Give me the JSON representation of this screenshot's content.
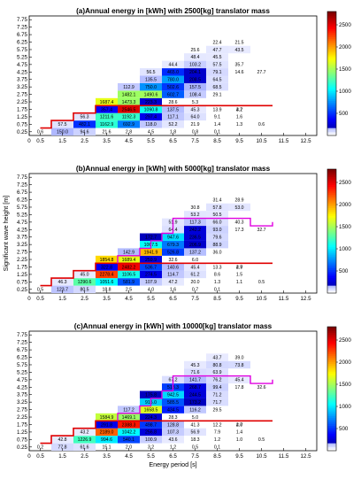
{
  "chart_data": [
    {
      "type": "heatmap",
      "title": "(a)Annual energy in [kWh] with 2500[kg] translator mass",
      "xlim": [
        0,
        13
      ],
      "ylim": [
        0,
        8
      ],
      "x_ticks": [
        "0",
        "0.5",
        "1.5",
        "2.5",
        "3.5",
        "4.5",
        "5.5",
        "6.5",
        "7.5",
        "8.5",
        "9.5",
        "10.5",
        "11.5",
        "12.5"
      ],
      "y_ticks": [
        "0.25",
        "0.75",
        "1.25",
        "1.75",
        "2.25",
        "2.75",
        "3.25",
        "3.75",
        "4.25",
        "4.75",
        "5.25",
        "5.75",
        "6.25",
        "6.75",
        "7.25",
        "7.75"
      ],
      "colorbar_ticks": [
        "500",
        "1000",
        "1500",
        "2000",
        "2500"
      ],
      "clim": [
        0,
        2800
      ],
      "cells": [
        [
          0.5,
          0.25,
          0.6
        ],
        [
          1.5,
          0.25,
          150.0
        ],
        [
          2.5,
          0.25,
          94.6
        ],
        [
          3.5,
          0.25,
          21.6
        ],
        [
          4.5,
          0.25,
          2.8
        ],
        [
          5.5,
          0.25,
          4.5
        ],
        [
          6.5,
          0.25,
          1.8
        ],
        [
          7.5,
          0.25,
          0.8
        ],
        [
          8.5,
          0.25,
          0.1
        ],
        [
          1.5,
          0.75,
          57.5
        ],
        [
          2.5,
          0.75,
          482.1
        ],
        [
          3.5,
          0.75,
          1162.9
        ],
        [
          4.5,
          0.75,
          692.9
        ],
        [
          5.5,
          0.75,
          118.0
        ],
        [
          6.5,
          0.75,
          52.2
        ],
        [
          7.5,
          0.75,
          21.9
        ],
        [
          8.5,
          0.75,
          1.4
        ],
        [
          9.5,
          0.75,
          1.3
        ],
        [
          10.5,
          0.75,
          0.6
        ],
        [
          2.5,
          1.25,
          56.3
        ],
        [
          3.5,
          1.25,
          1211.6
        ],
        [
          4.5,
          1.25,
          1192.3
        ],
        [
          5.5,
          1.25,
          297.4
        ],
        [
          6.5,
          1.25,
          117.1
        ],
        [
          7.5,
          1.25,
          64.0
        ],
        [
          8.5,
          1.25,
          9.1
        ],
        [
          9.5,
          1.25,
          1.6
        ],
        [
          3.5,
          1.75,
          357.4
        ],
        [
          4.5,
          1.75,
          2546.5
        ],
        [
          5.5,
          1.75,
          1090.8
        ],
        [
          6.5,
          1.75,
          137.5
        ],
        [
          7.5,
          1.75,
          45.3
        ],
        [
          8.5,
          1.75,
          13.9
        ],
        [
          9.5,
          1.75,
          3.2
        ],
        [
          3.5,
          2.25,
          1687.4
        ],
        [
          4.5,
          2.25,
          1473.3
        ],
        [
          5.5,
          2.25,
          223.3
        ],
        [
          6.5,
          2.25,
          28.6
        ],
        [
          7.5,
          2.25,
          5.3
        ],
        [
          4.5,
          2.75,
          1482.1
        ],
        [
          5.5,
          2.75,
          1490.6
        ],
        [
          6.5,
          2.75,
          602.7
        ],
        [
          7.5,
          2.75,
          108.4
        ],
        [
          8.5,
          2.75,
          29.1
        ],
        [
          4.5,
          3.25,
          112.9
        ],
        [
          5.5,
          3.25,
          750.0
        ],
        [
          6.5,
          3.25,
          502.6
        ],
        [
          7.5,
          3.25,
          157.5
        ],
        [
          8.5,
          3.25,
          68.5
        ],
        [
          5.5,
          3.75,
          135.5
        ],
        [
          6.5,
          3.75,
          780.0
        ],
        [
          7.5,
          3.75,
          208.5
        ],
        [
          8.5,
          3.75,
          64.5
        ],
        [
          5.5,
          4.25,
          56.5
        ],
        [
          6.5,
          4.25,
          465.0
        ],
        [
          7.5,
          4.25,
          204.1
        ],
        [
          8.5,
          4.25,
          79.1
        ],
        [
          9.5,
          4.25,
          14.6
        ],
        [
          10.5,
          4.25,
          27.7
        ],
        [
          6.5,
          4.75,
          44.4
        ],
        [
          7.5,
          4.75,
          103.2
        ],
        [
          8.5,
          4.75,
          57.5
        ],
        [
          9.5,
          4.75,
          35.7
        ],
        [
          7.5,
          5.25,
          48.4
        ],
        [
          8.5,
          5.25,
          45.5
        ],
        [
          7.5,
          5.75,
          25.6
        ],
        [
          8.5,
          5.75,
          47.7
        ],
        [
          9.5,
          5.75,
          43.5
        ],
        [
          8.5,
          6.25,
          22.4
        ],
        [
          9.5,
          6.25,
          21.5
        ],
        [
          9.5,
          1.75,
          4.7
        ]
      ]
    },
    {
      "type": "heatmap",
      "title": "(b)Annual energy in [kWh] with 5000[kg] translator mass",
      "ylabel": "Significant wave height [m]",
      "xlim": [
        0,
        13
      ],
      "ylim": [
        0,
        8
      ],
      "x_ticks": [
        "0",
        "0.5",
        "1.5",
        "2.5",
        "3.5",
        "4.5",
        "5.5",
        "6.5",
        "7.5",
        "8.5",
        "9.5",
        "10.5",
        "11.5",
        "12.5"
      ],
      "y_ticks": [
        "0.25",
        "0.75",
        "1.25",
        "1.75",
        "2.25",
        "2.75",
        "3.25",
        "3.75",
        "4.25",
        "4.75",
        "5.25",
        "5.75",
        "6.25",
        "6.75",
        "7.25",
        "7.75"
      ],
      "colorbar_ticks": [
        "500",
        "1000",
        "1500",
        "2000",
        "2500"
      ],
      "clim": [
        0,
        2800
      ],
      "cells": [
        [
          0.5,
          0.25,
          0.5
        ],
        [
          1.5,
          0.25,
          123.7
        ],
        [
          2.5,
          0.25,
          80.5
        ],
        [
          3.5,
          0.25,
          18.8
        ],
        [
          4.5,
          0.25,
          2.5
        ],
        [
          5.5,
          0.25,
          4.0
        ],
        [
          6.5,
          0.25,
          1.6
        ],
        [
          7.5,
          0.25,
          0.7
        ],
        [
          8.5,
          0.25,
          0.1
        ],
        [
          1.5,
          0.75,
          46.3
        ],
        [
          2.5,
          0.75,
          1290.6
        ],
        [
          3.5,
          0.75,
          1051.6
        ],
        [
          4.5,
          0.75,
          581.9
        ],
        [
          5.5,
          0.75,
          107.9
        ],
        [
          6.5,
          0.75,
          47.2
        ],
        [
          7.5,
          0.75,
          20.0
        ],
        [
          8.5,
          0.75,
          1.3
        ],
        [
          9.5,
          0.75,
          1.1
        ],
        [
          10.5,
          0.75,
          0.5
        ],
        [
          2.5,
          1.25,
          45.0
        ],
        [
          3.5,
          1.25,
          2278.4
        ],
        [
          4.5,
          1.25,
          1106.5
        ],
        [
          5.5,
          1.25,
          274.5
        ],
        [
          6.5,
          1.25,
          114.7
        ],
        [
          7.5,
          1.25,
          61.2
        ],
        [
          8.5,
          1.25,
          8.6
        ],
        [
          9.5,
          1.25,
          1.5
        ],
        [
          3.5,
          1.75,
          322.8
        ],
        [
          4.5,
          1.75,
          2482.2
        ],
        [
          5.5,
          1.75,
          536.7
        ],
        [
          6.5,
          1.75,
          140.6
        ],
        [
          7.5,
          1.75,
          45.4
        ],
        [
          8.5,
          1.75,
          13.3
        ],
        [
          9.5,
          1.75,
          2.9
        ],
        [
          3.5,
          2.25,
          1854.8
        ],
        [
          4.5,
          2.25,
          1689.4
        ],
        [
          5.5,
          2.25,
          259.9
        ],
        [
          6.5,
          2.25,
          32.6
        ],
        [
          7.5,
          2.25,
          6.0
        ],
        [
          4.5,
          2.75,
          142.9
        ],
        [
          5.5,
          2.75,
          1941.9
        ],
        [
          6.5,
          2.75,
          526.8
        ],
        [
          7.5,
          2.75,
          137.2
        ],
        [
          8.5,
          2.75,
          36.0
        ],
        [
          5.5,
          3.25,
          1067.5
        ],
        [
          6.5,
          3.25,
          679.3
        ],
        [
          7.5,
          3.25,
          206.9
        ],
        [
          8.5,
          3.25,
          88.9
        ],
        [
          5.5,
          3.75,
          172.7
        ],
        [
          6.5,
          3.75,
          947.6
        ],
        [
          7.5,
          3.75,
          236.5
        ],
        [
          8.5,
          3.75,
          79.6
        ],
        [
          6.5,
          4.25,
          64.4
        ],
        [
          7.5,
          4.25,
          242.2
        ],
        [
          8.5,
          4.25,
          93.0
        ],
        [
          9.5,
          4.25,
          17.3
        ],
        [
          10.5,
          4.25,
          32.7
        ],
        [
          6.5,
          4.75,
          51.9
        ],
        [
          7.5,
          4.75,
          117.3
        ],
        [
          8.5,
          4.75,
          66.0
        ],
        [
          9.5,
          4.75,
          40.3
        ],
        [
          7.5,
          5.25,
          53.2
        ],
        [
          8.5,
          5.25,
          50.5
        ],
        [
          7.5,
          5.75,
          30.8
        ],
        [
          8.5,
          5.75,
          57.8
        ],
        [
          9.5,
          5.75,
          53.0
        ],
        [
          8.5,
          6.25,
          31.4
        ],
        [
          9.5,
          6.25,
          28.9
        ],
        [
          9.5,
          1.75,
          4.7
        ]
      ]
    },
    {
      "type": "heatmap",
      "title": "(c)Annual energy in [kWh] with 10000[kg] translator mass",
      "xlabel": "Energy period [s]",
      "xlim": [
        0,
        13
      ],
      "ylim": [
        0,
        8
      ],
      "x_ticks": [
        "0",
        "0.5",
        "1.5",
        "2.5",
        "3.5",
        "4.5",
        "5.5",
        "6.5",
        "7.5",
        "8.5",
        "9.5",
        "10.5",
        "11.5",
        "12.5"
      ],
      "y_ticks": [
        "0.25",
        "0.75",
        "1.25",
        "1.75",
        "2.25",
        "2.75",
        "3.25",
        "3.75",
        "4.25",
        "4.75",
        "5.25",
        "5.75",
        "6.25",
        "6.75",
        "7.25",
        "7.75"
      ],
      "colorbar_ticks": [
        "500",
        "1000",
        "1500",
        "2000",
        "2500"
      ],
      "clim": [
        0,
        2800
      ],
      "cells": [
        [
          0.5,
          0.25,
          0.2
        ],
        [
          1.5,
          0.25,
          77.8
        ],
        [
          2.5,
          0.25,
          61.6
        ],
        [
          3.5,
          0.25,
          15.1
        ],
        [
          4.5,
          0.25,
          2.0
        ],
        [
          5.5,
          0.25,
          3.2
        ],
        [
          6.5,
          0.25,
          1.2
        ],
        [
          7.5,
          0.25,
          0.5
        ],
        [
          8.5,
          0.25,
          0.1
        ],
        [
          1.5,
          0.75,
          42.8
        ],
        [
          2.5,
          0.75,
          1226.9
        ],
        [
          3.5,
          0.75,
          994.6
        ],
        [
          4.5,
          0.75,
          540.1
        ],
        [
          5.5,
          0.75,
          100.9
        ],
        [
          6.5,
          0.75,
          43.6
        ],
        [
          7.5,
          0.75,
          18.3
        ],
        [
          8.5,
          0.75,
          1.2
        ],
        [
          9.5,
          0.75,
          1.0
        ],
        [
          10.5,
          0.75,
          0.5
        ],
        [
          2.5,
          1.25,
          43.2
        ],
        [
          3.5,
          1.25,
          2189.0
        ],
        [
          4.5,
          1.25,
          1042.2
        ],
        [
          5.5,
          1.25,
          256.8
        ],
        [
          6.5,
          1.25,
          107.3
        ],
        [
          7.5,
          1.25,
          56.9
        ],
        [
          8.5,
          1.25,
          7.9
        ],
        [
          9.5,
          1.25,
          1.4
        ],
        [
          3.5,
          1.75,
          291.8
        ],
        [
          4.5,
          1.75,
          2388.3
        ],
        [
          5.5,
          1.75,
          498.7
        ],
        [
          6.5,
          1.75,
          128.8
        ],
        [
          7.5,
          1.75,
          41.3
        ],
        [
          8.5,
          1.75,
          12.2
        ],
        [
          9.5,
          1.75,
          2.7
        ],
        [
          3.5,
          2.25,
          1584.9
        ],
        [
          4.5,
          2.25,
          1469.1
        ],
        [
          5.5,
          2.25,
          224.3
        ],
        [
          6.5,
          2.25,
          28.3
        ],
        [
          7.5,
          2.25,
          5.0
        ],
        [
          4.5,
          2.75,
          117.2
        ],
        [
          5.5,
          2.75,
          1658.5
        ],
        [
          6.5,
          2.75,
          434.5
        ],
        [
          7.5,
          2.75,
          116.2
        ],
        [
          8.5,
          2.75,
          29.5
        ],
        [
          5.5,
          3.25,
          915.0
        ],
        [
          6.5,
          3.25,
          585.5
        ],
        [
          7.5,
          3.25,
          173.2
        ],
        [
          8.5,
          3.25,
          71.7
        ],
        [
          5.5,
          3.75,
          175.8
        ],
        [
          6.5,
          3.75,
          942.5
        ],
        [
          7.5,
          3.75,
          244.5
        ],
        [
          8.5,
          3.75,
          71.2
        ],
        [
          6.5,
          4.25,
          518.3
        ],
        [
          7.5,
          4.25,
          268.7
        ],
        [
          8.5,
          4.25,
          99.4
        ],
        [
          9.5,
          4.25,
          17.8
        ],
        [
          10.5,
          4.25,
          32.6
        ],
        [
          6.5,
          4.75,
          67.2
        ],
        [
          7.5,
          4.75,
          141.7
        ],
        [
          8.5,
          4.75,
          76.2
        ],
        [
          9.5,
          4.75,
          45.4
        ],
        [
          7.5,
          5.25,
          71.6
        ],
        [
          8.5,
          5.25,
          63.9
        ],
        [
          7.5,
          5.75,
          45.3
        ],
        [
          8.5,
          5.75,
          80.8
        ],
        [
          9.5,
          5.75,
          73.8
        ],
        [
          8.5,
          6.25,
          43.7
        ],
        [
          9.5,
          6.25,
          39.0
        ],
        [
          9.5,
          1.75,
          4.0
        ]
      ]
    }
  ]
}
